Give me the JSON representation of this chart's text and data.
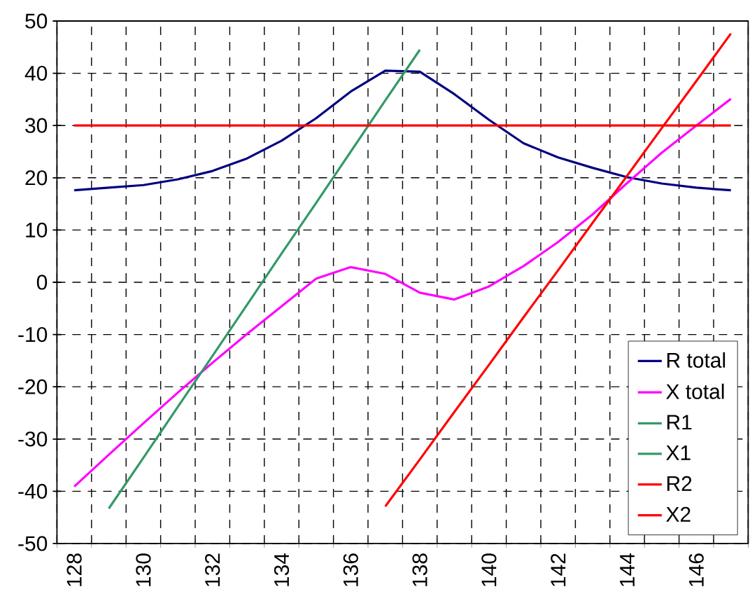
{
  "chart_data": {
    "type": "line",
    "categories": [
      "128",
      null,
      "130",
      null,
      "132",
      null,
      "134",
      null,
      "136",
      null,
      "138",
      null,
      "140",
      null,
      "142",
      null,
      "144",
      null,
      "146",
      null
    ],
    "ylim": [
      -50,
      50
    ],
    "yticks": [
      -50,
      -40,
      -30,
      -20,
      -10,
      0,
      10,
      20,
      30,
      40,
      50
    ],
    "grid": true,
    "legend": "bottom right",
    "series": [
      {
        "name": "R total",
        "color": "#000080",
        "values": [
          17.6,
          18.1,
          18.6,
          19.7,
          21.3,
          23.7,
          27.1,
          31.4,
          36.5,
          40.5,
          40.3,
          36.0,
          31.1,
          26.6,
          23.9,
          21.9,
          20.1,
          18.9,
          18.1,
          17.6
        ]
      },
      {
        "name": "X total",
        "color": "#ff00ff",
        "values": [
          -39.1,
          -33.0,
          -27.0,
          -21.1,
          -15.4,
          -9.9,
          -4.6,
          0.7,
          2.9,
          1.6,
          -2.0,
          -3.3,
          -0.8,
          3.1,
          7.7,
          13.0,
          19.0,
          24.8,
          30.0,
          35.1
        ]
      },
      {
        "name": "R1",
        "color": "#339966",
        "values": [
          null,
          null,
          null,
          null,
          null,
          null,
          null,
          null,
          null,
          null,
          null,
          null,
          null,
          null,
          null,
          null,
          null,
          null,
          null,
          null
        ]
      },
      {
        "name": "X1",
        "color": "#339966",
        "values": [
          null,
          -43.3,
          -33.6,
          -23.8,
          -14.1,
          -4.3,
          5.5,
          15.2,
          25.0,
          34.8,
          44.5,
          null,
          null,
          null,
          null,
          null,
          null,
          null,
          null,
          null
        ]
      },
      {
        "name": "R2",
        "color": "#ff0000",
        "values": [
          30,
          30,
          30,
          30,
          30,
          30,
          30,
          30,
          30,
          30,
          30,
          30,
          30,
          30,
          30,
          30,
          30,
          30,
          30,
          30
        ]
      },
      {
        "name": "X2",
        "color": "#ff0000",
        "values": [
          null,
          null,
          null,
          null,
          null,
          null,
          null,
          null,
          null,
          -42.9,
          -33.9,
          -24.8,
          -15.8,
          -6.7,
          2.3,
          11.4,
          20.4,
          29.5,
          38.5,
          47.6
        ]
      }
    ]
  }
}
